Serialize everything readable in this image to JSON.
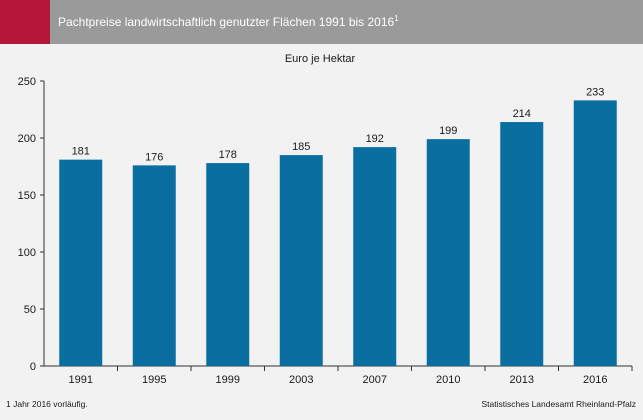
{
  "header": {
    "title": "Pachtpreise landwirtschaftlich genutzter Flächen 1991 bis 2016",
    "title_footnote_mark": "1",
    "accent_color": "#b5173b",
    "bar_color": "#9a9a9a"
  },
  "footer": {
    "footnote": "1 Jahr 2016 vorläufig.",
    "source": "Statistisches Landesamt Rheinland-Pfalz"
  },
  "chart_data": {
    "type": "bar",
    "subtitle": "Euro je Hektar",
    "categories": [
      "1991",
      "1995",
      "1999",
      "2003",
      "2007",
      "2010",
      "2013",
      "2016"
    ],
    "values": [
      181,
      176,
      178,
      185,
      192,
      199,
      214,
      233
    ],
    "ylim": [
      0,
      250
    ],
    "yticks": [
      0,
      50,
      100,
      150,
      200,
      250
    ],
    "grid": false,
    "bar_color": "#0a6fa0",
    "data_labels": true
  }
}
